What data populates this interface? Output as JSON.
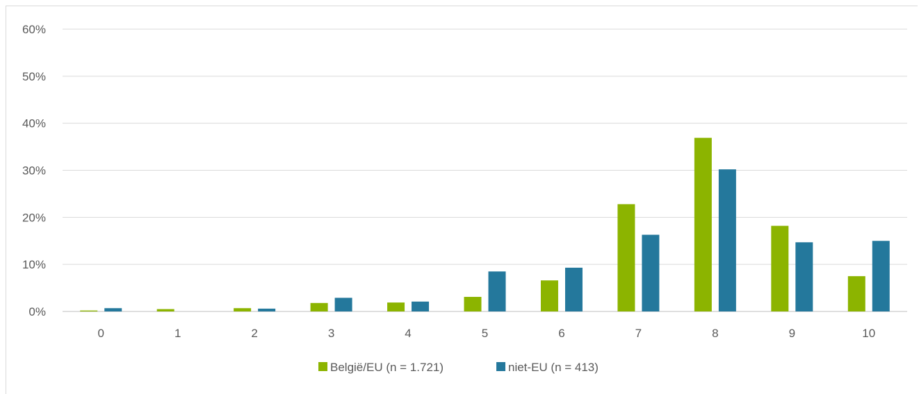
{
  "chart_data": {
    "type": "bar",
    "categories": [
      "0",
      "1",
      "2",
      "3",
      "4",
      "5",
      "6",
      "7",
      "8",
      "9",
      "10"
    ],
    "series": [
      {
        "name": "België/EU (n = 1.721)",
        "color": "#8cb400",
        "values": [
          0.2,
          0.5,
          0.7,
          1.8,
          1.9,
          3.1,
          6.6,
          22.8,
          36.9,
          18.2,
          7.5
        ]
      },
      {
        "name": "niet-EU (n = 413)",
        "color": "#24789c",
        "values": [
          0.7,
          0.0,
          0.6,
          2.9,
          2.1,
          8.5,
          9.3,
          16.3,
          30.2,
          14.7,
          15.0
        ]
      }
    ],
    "y_ticks": [
      "0%",
      "10%",
      "20%",
      "30%",
      "40%",
      "50%",
      "60%"
    ],
    "ylim": [
      0,
      60
    ],
    "grid": true,
    "legend_position": "bottom",
    "title": "",
    "xlabel": "",
    "ylabel": ""
  }
}
